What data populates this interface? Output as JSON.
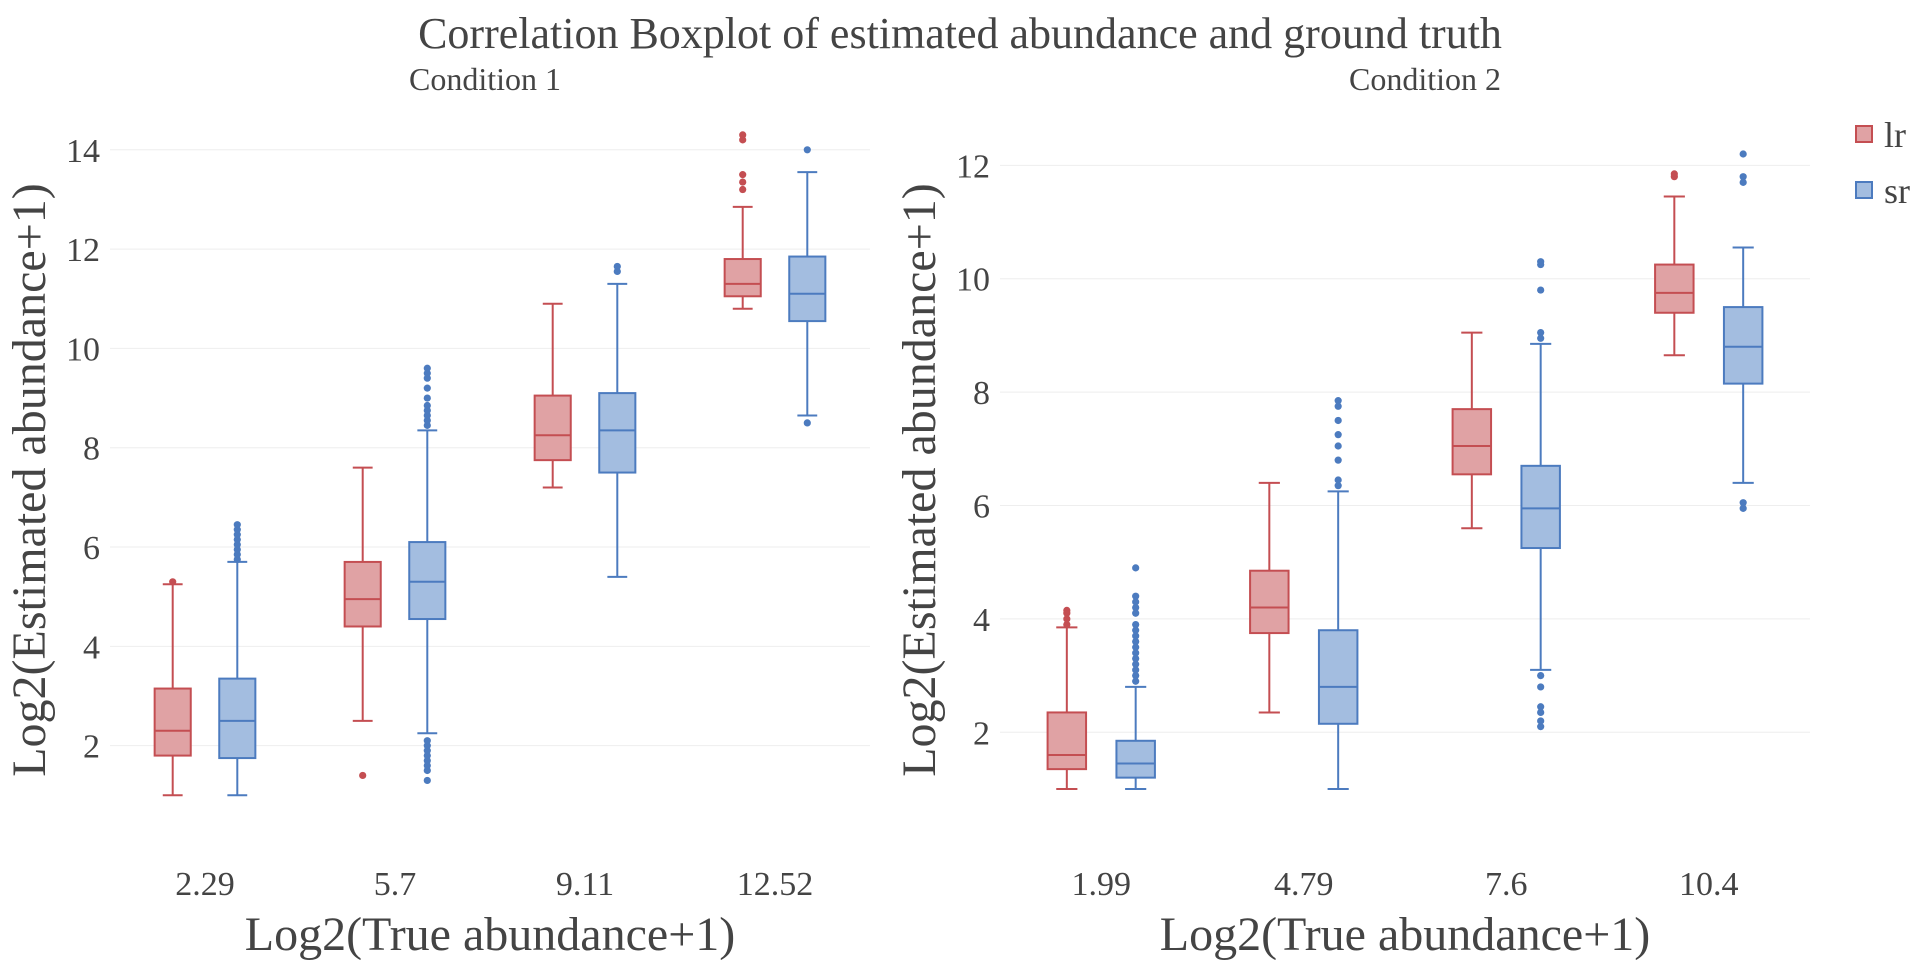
{
  "chart_data": {
    "type": "box",
    "title": "Correlation Boxplot of estimated abundance and ground truth",
    "legend": {
      "placement": "top-right",
      "entries": [
        {
          "name": "lr",
          "color": "#C44E52",
          "fill": "#E0A2A4"
        },
        {
          "name": "sr",
          "color": "#4C7BBF",
          "fill": "#A3BDE0"
        }
      ]
    },
    "panels": [
      {
        "subtitle": "Condition 1",
        "xlabel": "Log2(True abundance+1)",
        "ylabel": "Log2(Estimated abundance+1)",
        "ylim": [
          0.1,
          14.6
        ],
        "yticks": [
          2,
          4,
          6,
          8,
          10,
          12,
          14
        ],
        "categories": [
          "2.29",
          "5.7",
          "9.11",
          "12.52"
        ],
        "grid": true,
        "series": [
          {
            "name": "lr",
            "boxes": [
              {
                "category": "2.29",
                "low": 1.0,
                "q1": 1.8,
                "median": 2.3,
                "q3": 3.15,
                "high": 5.25,
                "outliers": [
                  5.3
                ]
              },
              {
                "category": "5.7",
                "low": 2.5,
                "q1": 4.4,
                "median": 4.95,
                "q3": 5.7,
                "high": 7.6,
                "outliers": [
                  1.4
                ]
              },
              {
                "category": "9.11",
                "low": 7.2,
                "q1": 7.75,
                "median": 8.25,
                "q3": 9.05,
                "high": 10.9,
                "outliers": []
              },
              {
                "category": "12.52",
                "low": 10.8,
                "q1": 11.05,
                "median": 11.3,
                "q3": 11.8,
                "high": 12.85,
                "outliers": [
                  13.2,
                  13.35,
                  13.5,
                  14.2,
                  14.3
                ]
              }
            ]
          },
          {
            "name": "sr",
            "boxes": [
              {
                "category": "2.29",
                "low": 1.0,
                "q1": 1.75,
                "median": 2.5,
                "q3": 3.35,
                "high": 5.7,
                "outliers": [
                  5.75,
                  5.85,
                  5.95,
                  6.05,
                  6.15,
                  6.25,
                  6.35,
                  6.45
                ]
              },
              {
                "category": "5.7",
                "low": 2.25,
                "q1": 4.55,
                "median": 5.3,
                "q3": 6.1,
                "high": 8.35,
                "outliers": [
                  1.3,
                  1.5,
                  1.6,
                  1.7,
                  1.8,
                  1.9,
                  2.0,
                  2.1,
                  8.45,
                  8.55,
                  8.65,
                  8.75,
                  8.85,
                  9.0,
                  9.2,
                  9.4,
                  9.5,
                  9.6
                ]
              },
              {
                "category": "9.11",
                "low": 5.4,
                "q1": 7.5,
                "median": 8.35,
                "q3": 9.1,
                "high": 11.3,
                "outliers": [
                  11.55,
                  11.65
                ]
              },
              {
                "category": "12.52",
                "low": 8.65,
                "q1": 10.55,
                "median": 11.1,
                "q3": 11.85,
                "high": 13.55,
                "outliers": [
                  8.5,
                  14.0
                ]
              }
            ]
          }
        ]
      },
      {
        "subtitle": "Condition 2",
        "xlabel": "Log2(True abundance+1)",
        "ylabel": "Log2(Estimated abundance+1)",
        "ylim": [
          0.1,
          12.8
        ],
        "yticks": [
          2,
          4,
          6,
          8,
          10,
          12
        ],
        "categories": [
          "1.99",
          "4.79",
          "7.6",
          "10.4"
        ],
        "grid": true,
        "series": [
          {
            "name": "lr",
            "boxes": [
              {
                "category": "1.99",
                "low": 1.0,
                "q1": 1.35,
                "median": 1.6,
                "q3": 2.35,
                "high": 3.85,
                "outliers": [
                  3.9,
                  4.0,
                  4.1,
                  4.15
                ]
              },
              {
                "category": "4.79",
                "low": 2.35,
                "q1": 3.75,
                "median": 4.2,
                "q3": 4.85,
                "high": 6.4,
                "outliers": []
              },
              {
                "category": "7.6",
                "low": 5.6,
                "q1": 6.55,
                "median": 7.05,
                "q3": 7.7,
                "high": 9.05,
                "outliers": []
              },
              {
                "category": "10.4",
                "low": 8.65,
                "q1": 9.4,
                "median": 9.75,
                "q3": 10.25,
                "high": 11.45,
                "outliers": [
                  11.8,
                  11.85
                ]
              }
            ]
          },
          {
            "name": "sr",
            "boxes": [
              {
                "category": "1.99",
                "low": 1.0,
                "q1": 1.2,
                "median": 1.45,
                "q3": 1.85,
                "high": 2.8,
                "outliers": [
                  2.9,
                  3.0,
                  3.1,
                  3.2,
                  3.3,
                  3.4,
                  3.5,
                  3.6,
                  3.7,
                  3.8,
                  3.9,
                  4.1,
                  4.2,
                  4.3,
                  4.4,
                  4.9
                ]
              },
              {
                "category": "4.79",
                "low": 1.0,
                "q1": 2.15,
                "median": 2.8,
                "q3": 3.8,
                "high": 6.25,
                "outliers": [
                  6.35,
                  6.45,
                  6.8,
                  7.05,
                  7.25,
                  7.5,
                  7.75,
                  7.85
                ]
              },
              {
                "category": "7.6",
                "low": 3.1,
                "q1": 5.25,
                "median": 5.95,
                "q3": 6.7,
                "high": 8.85,
                "outliers": [
                  2.1,
                  2.2,
                  2.35,
                  2.45,
                  2.8,
                  3.0,
                  8.95,
                  9.05,
                  9.8,
                  10.25,
                  10.3
                ]
              },
              {
                "category": "10.4",
                "low": 6.4,
                "q1": 8.15,
                "median": 8.8,
                "q3": 9.5,
                "high": 10.55,
                "outliers": [
                  5.95,
                  6.05,
                  11.7,
                  11.8,
                  12.2
                ]
              }
            ]
          }
        ]
      }
    ]
  }
}
